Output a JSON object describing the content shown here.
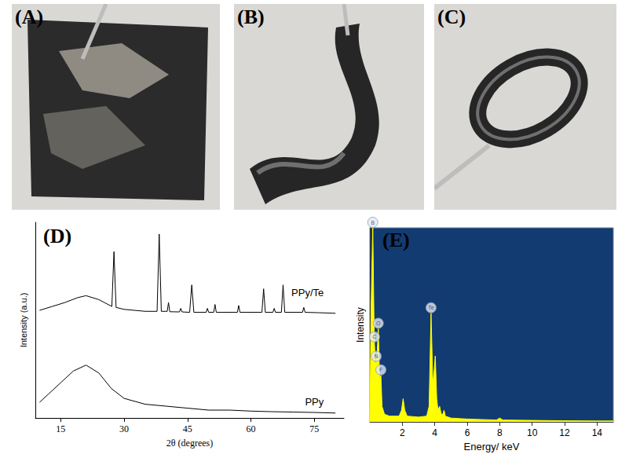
{
  "photos": [
    {
      "label": "(A)"
    },
    {
      "label": "(B)"
    },
    {
      "label": "(C)"
    }
  ],
  "chart_data": [
    {
      "panel": "(D)",
      "type": "line",
      "x_label": "2θ (degrees)",
      "y_label": "Intensity (a.u.)",
      "xlim": [
        9,
        82
      ],
      "xticks": [
        15,
        30,
        45,
        60,
        75
      ],
      "ylim": [
        0,
        100
      ],
      "tick_labels": "x",
      "series": [
        {
          "name": "PPy/Te",
          "color": "#000000",
          "x": [
            10,
            13,
            16,
            19,
            21,
            24,
            27.1,
            27.6,
            28.1,
            30,
            35,
            37.8,
            38.3,
            38.8,
            40.2,
            40.5,
            40.8,
            43.1,
            43.4,
            43.7,
            45.5,
            46,
            46.5,
            49.4,
            49.7,
            50,
            51.2,
            51.5,
            51.8,
            56.8,
            57.1,
            57.4,
            62.6,
            63,
            63.4,
            65.2,
            65.5,
            65.8,
            67.2,
            67.6,
            68,
            72.2,
            72.5,
            72.8,
            76,
            80
          ],
          "values": [
            55,
            57,
            59,
            61.5,
            62.5,
            60.5,
            57,
            85,
            56.5,
            55.5,
            54.5,
            54.5,
            94,
            54.5,
            54.5,
            59,
            54.3,
            54.2,
            56,
            54.2,
            54,
            68,
            54,
            54,
            56,
            54,
            54,
            58,
            54,
            54,
            57.5,
            54,
            54,
            66,
            54,
            54,
            56,
            54,
            54,
            68,
            54,
            54,
            56.5,
            54,
            53.8,
            53.5
          ]
        },
        {
          "name": "PPy",
          "color": "#000000",
          "x": [
            10,
            12,
            15,
            18,
            21,
            24,
            27,
            30,
            35,
            40,
            45,
            50,
            55,
            60,
            65,
            70,
            75,
            80
          ],
          "values": [
            8,
            12,
            18,
            24,
            27,
            23,
            15,
            10,
            7,
            6,
            5,
            4,
            4,
            3.5,
            3.2,
            3,
            2.8,
            2.5
          ]
        }
      ]
    },
    {
      "panel": "(E)",
      "type": "area",
      "x_label": "Energy/ keV",
      "y_label": "Intensity",
      "xlim": [
        0,
        15
      ],
      "xticks": [
        2,
        4,
        6,
        8,
        10,
        12,
        14
      ],
      "ylim": [
        0,
        100
      ],
      "tick_labels": "x",
      "color": "#ffff00",
      "x": [
        0,
        0.08,
        0.18,
        0.25,
        0.28,
        0.34,
        0.39,
        0.45,
        0.52,
        0.6,
        0.68,
        0.75,
        0.9,
        1.2,
        1.8,
        1.95,
        2.05,
        2.15,
        2.3,
        3.0,
        3.5,
        3.65,
        3.77,
        3.88,
        3.95,
        4.03,
        4.12,
        4.2,
        4.3,
        4.4,
        4.5,
        4.57,
        4.65,
        5.0,
        6.0,
        7.8,
        8.0,
        8.2,
        10,
        12,
        14,
        15
      ],
      "values": [
        0,
        60,
        100,
        55,
        41,
        30,
        31,
        35,
        48,
        22,
        24,
        8,
        4,
        3,
        3,
        6,
        12,
        6,
        3,
        2.5,
        3,
        8,
        56,
        20,
        25,
        34,
        12,
        6,
        8,
        4,
        4,
        6,
        3,
        2,
        1.5,
        1,
        2,
        1,
        0.8,
        0.6,
        0.5,
        0.5
      ],
      "peaks": [
        {
          "label": "B",
          "x": 0.18,
          "value": 100
        },
        {
          "label": "C",
          "x": 0.28,
          "value": 41
        },
        {
          "label": "N",
          "x": 0.39,
          "value": 31
        },
        {
          "label": "O",
          "x": 0.52,
          "value": 48
        },
        {
          "label": "F",
          "x": 0.68,
          "value": 24
        },
        {
          "label": "Te",
          "x": 3.77,
          "value": 56
        }
      ]
    }
  ]
}
